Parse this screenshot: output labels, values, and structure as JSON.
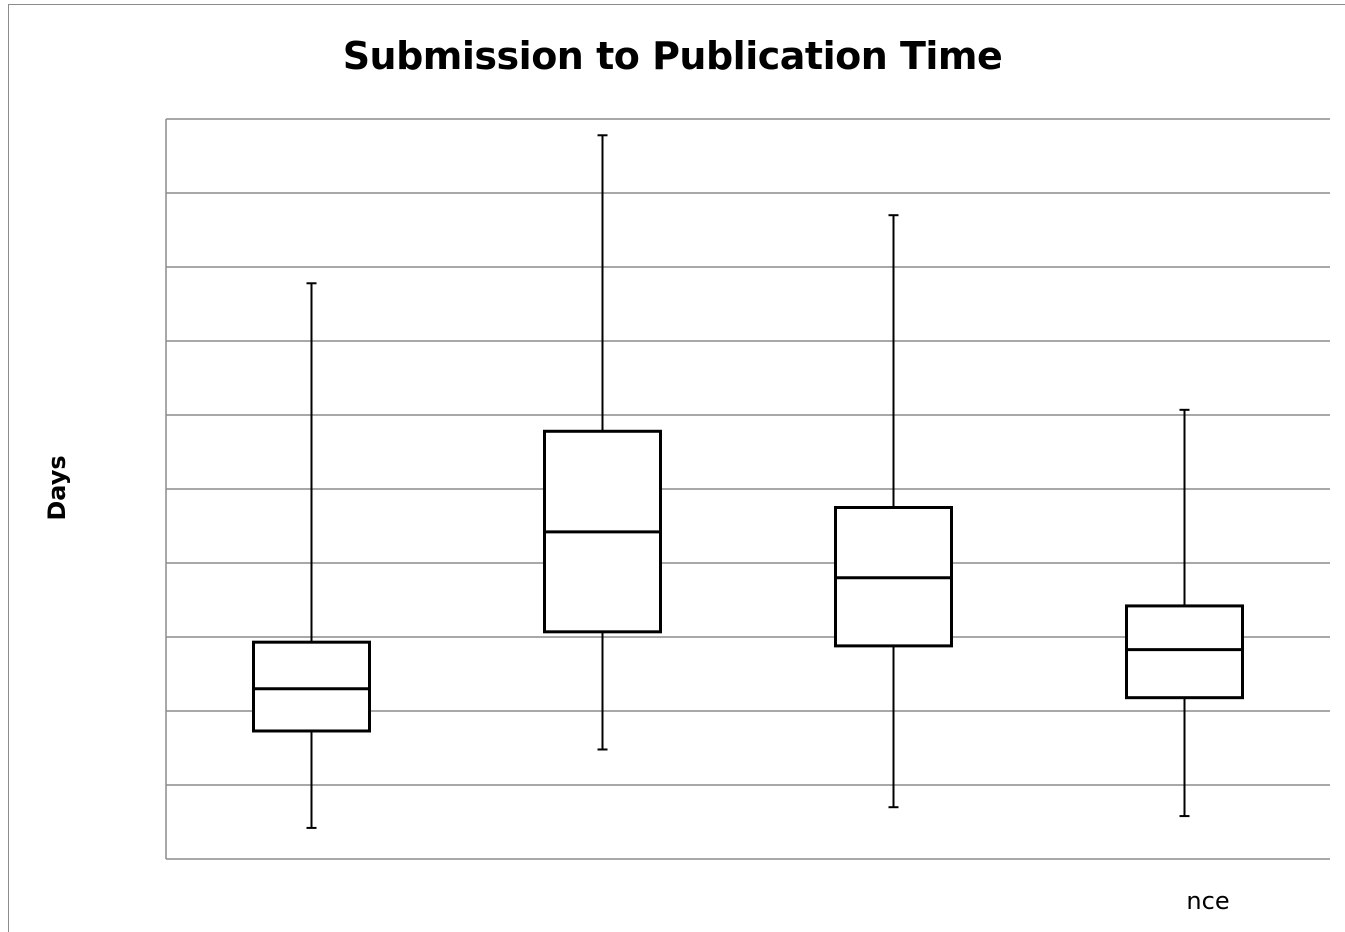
{
  "chart_data": {
    "type": "box",
    "title": "Submission to Publication Time",
    "ylabel": "Days",
    "xlabel": "",
    "y_range": [
      0,
      10
    ],
    "grid": true,
    "gridlines": 10,
    "x_tick_labels": [
      "",
      "",
      "",
      "nce"
    ],
    "boxes": [
      {
        "min": 0.42,
        "q1": 1.73,
        "median": 2.3,
        "q3": 2.93,
        "max": 7.78
      },
      {
        "min": 1.48,
        "q1": 3.07,
        "median": 4.42,
        "q3": 5.78,
        "max": 9.78
      },
      {
        "min": 0.7,
        "q1": 2.88,
        "median": 3.8,
        "q3": 4.75,
        "max": 8.7
      },
      {
        "min": 0.58,
        "q1": 2.18,
        "median": 2.83,
        "q3": 3.42,
        "max": 6.07
      }
    ]
  }
}
